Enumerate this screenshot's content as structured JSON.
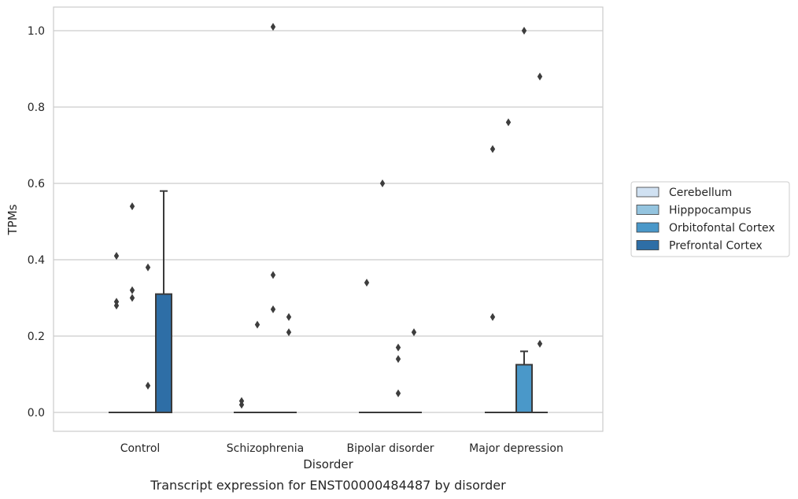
{
  "chart_data": {
    "type": "box",
    "xlabel": "Disorder",
    "ylabel": "TPMs",
    "caption": "Transcript expression for ENST00000484487 by disorder",
    "categories": [
      "Control",
      "Schizophrenia",
      "Bipolar disorder",
      "Major depression"
    ],
    "ylim": [
      -0.05,
      1.06
    ],
    "yticks": [
      0.0,
      0.2,
      0.4,
      0.6,
      0.8,
      1.0
    ],
    "ytick_labels": [
      "0.0",
      "0.2",
      "0.4",
      "0.6",
      "0.8",
      "1.0"
    ],
    "grid": true,
    "legend_position": "right",
    "series": [
      {
        "name": "Cerebellum",
        "color": "#d0e1f2"
      },
      {
        "name": "Hipppocampus",
        "color": "#94c4df"
      },
      {
        "name": "Orbitofontal Cortex",
        "color": "#4a98c9"
      },
      {
        "name": "Prefrontal Cortex",
        "color": "#2e6ea6"
      }
    ],
    "boxes": [
      {
        "category": "Control",
        "series": "Cerebellum",
        "q1": 0,
        "median": 0,
        "q3": 0,
        "whisker_low": 0,
        "whisker_high": 0,
        "outliers": [
          0.28,
          0.29,
          0.41
        ]
      },
      {
        "category": "Control",
        "series": "Hipppocampus",
        "q1": 0,
        "median": 0,
        "q3": 0,
        "whisker_low": 0,
        "whisker_high": 0,
        "outliers": [
          0.3,
          0.32,
          0.54
        ]
      },
      {
        "category": "Control",
        "series": "Orbitofontal Cortex",
        "q1": 0,
        "median": 0,
        "q3": 0,
        "whisker_low": 0,
        "whisker_high": 0,
        "outliers": [
          0.07,
          0.38
        ]
      },
      {
        "category": "Control",
        "series": "Prefrontal Cortex",
        "q1": 0,
        "median": 0,
        "q3": 0.31,
        "whisker_low": 0,
        "whisker_high": 0.58,
        "outliers": []
      },
      {
        "category": "Schizophrenia",
        "series": "Cerebellum",
        "q1": 0,
        "median": 0,
        "q3": 0,
        "whisker_low": 0,
        "whisker_high": 0,
        "outliers": [
          0.02,
          0.03
        ]
      },
      {
        "category": "Schizophrenia",
        "series": "Hipppocampus",
        "q1": 0,
        "median": 0,
        "q3": 0,
        "whisker_low": 0,
        "whisker_high": 0,
        "outliers": [
          0.23
        ]
      },
      {
        "category": "Schizophrenia",
        "series": "Orbitofontal Cortex",
        "q1": 0,
        "median": 0,
        "q3": 0,
        "whisker_low": 0,
        "whisker_high": 0,
        "outliers": [
          0.27,
          0.36,
          1.01
        ]
      },
      {
        "category": "Schizophrenia",
        "series": "Prefrontal Cortex",
        "q1": 0,
        "median": 0,
        "q3": 0,
        "whisker_low": 0,
        "whisker_high": 0,
        "outliers": [
          0.21,
          0.25
        ]
      },
      {
        "category": "Bipolar disorder",
        "series": "Cerebellum",
        "q1": 0,
        "median": 0,
        "q3": 0,
        "whisker_low": 0,
        "whisker_high": 0,
        "outliers": [
          0.34
        ]
      },
      {
        "category": "Bipolar disorder",
        "series": "Hipppocampus",
        "q1": 0,
        "median": 0,
        "q3": 0,
        "whisker_low": 0,
        "whisker_high": 0,
        "outliers": [
          0.6
        ]
      },
      {
        "category": "Bipolar disorder",
        "series": "Orbitofontal Cortex",
        "q1": 0,
        "median": 0,
        "q3": 0,
        "whisker_low": 0,
        "whisker_high": 0,
        "outliers": [
          0.05,
          0.14,
          0.17
        ]
      },
      {
        "category": "Bipolar disorder",
        "series": "Prefrontal Cortex",
        "q1": 0,
        "median": 0,
        "q3": 0,
        "whisker_low": 0,
        "whisker_high": 0,
        "outliers": [
          0.21
        ]
      },
      {
        "category": "Major depression",
        "series": "Cerebellum",
        "q1": 0,
        "median": 0,
        "q3": 0,
        "whisker_low": 0,
        "whisker_high": 0,
        "outliers": [
          0.25,
          0.69
        ]
      },
      {
        "category": "Major depression",
        "series": "Hipppocampus",
        "q1": 0,
        "median": 0,
        "q3": 0,
        "whisker_low": 0,
        "whisker_high": 0,
        "outliers": [
          0.76
        ]
      },
      {
        "category": "Major depression",
        "series": "Orbitofontal Cortex",
        "q1": 0,
        "median": 0,
        "q3": 0.125,
        "whisker_low": 0,
        "whisker_high": 0.16,
        "outliers": [
          1.0
        ]
      },
      {
        "category": "Major depression",
        "series": "Prefrontal Cortex",
        "q1": 0,
        "median": 0,
        "q3": 0,
        "whisker_low": 0,
        "whisker_high": 0,
        "outliers": [
          0.18,
          0.88
        ]
      }
    ]
  }
}
